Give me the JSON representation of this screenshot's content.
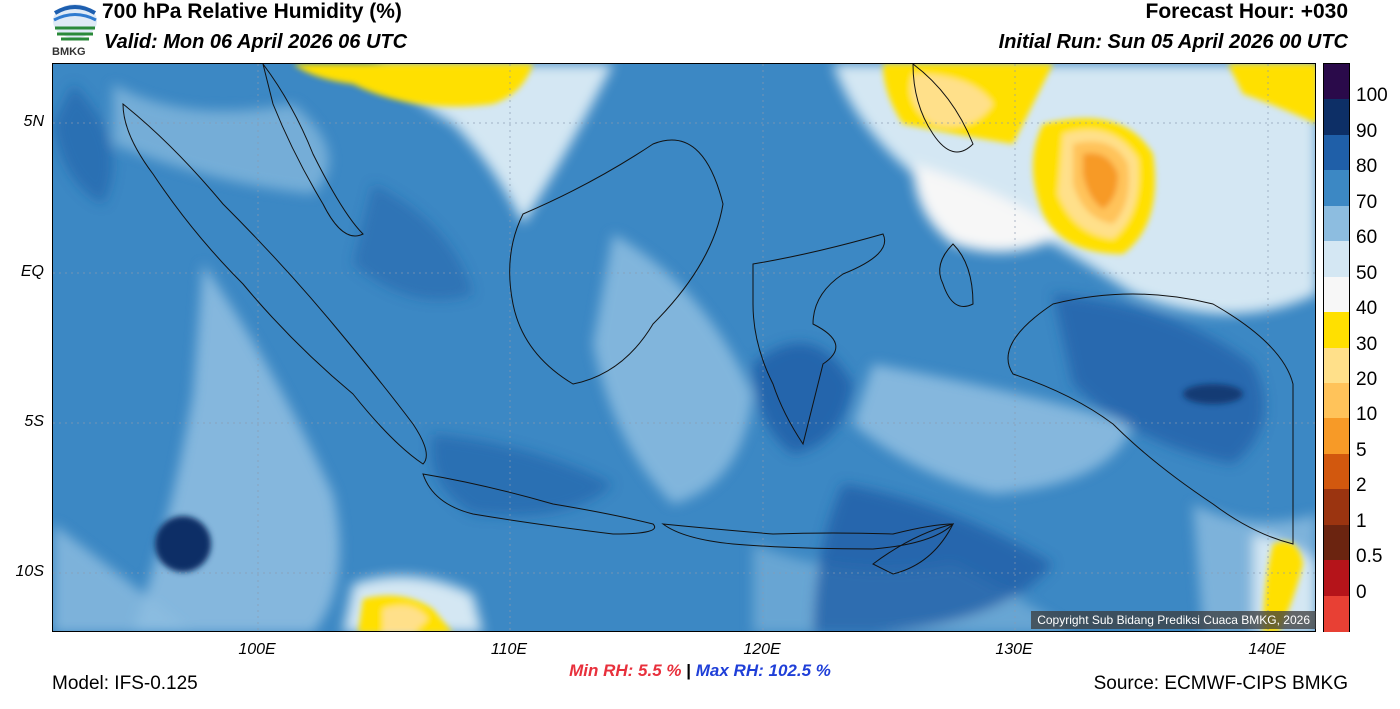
{
  "header": {
    "title": "700 hPa Relative Humidity (%)",
    "valid": "Valid: Mon 06 April 2026 06 UTC",
    "forecast_hour": "Forecast Hour: +030",
    "initial_run": "Initial Run: Sun 05 April 2026 00 UTC",
    "logo_text": "BMKG"
  },
  "axes": {
    "lat_labels": [
      "5N",
      "EQ",
      "5S",
      "10S"
    ],
    "lon_labels": [
      "100E",
      "110E",
      "120E",
      "130E",
      "140E"
    ]
  },
  "stats": {
    "min_label": "Min RH:",
    "min_value": "5.5 %",
    "separator": "|",
    "max_label": "Max RH: 102.5 %"
  },
  "footer": {
    "model": "Model: IFS-0.125",
    "source": "Source: ECMWF-CIPS BMKG",
    "copyright": "Copyright Sub Bidang Prediksi Cuaca BMKG, 2026"
  },
  "colorbar": {
    "labels": [
      "100",
      "90",
      "80",
      "70",
      "60",
      "50",
      "40",
      "30",
      "20",
      "10",
      "5",
      "2",
      "1",
      "0.5",
      "0"
    ],
    "colors": [
      "#2a0a4a",
      "#0d2f66",
      "#1f5fa8",
      "#3c88c4",
      "#8dbde0",
      "#d4e7f3",
      "#f7f7f7",
      "#ffe000",
      "#ffe08a",
      "#ffc35a",
      "#f79a27",
      "#d2580e",
      "#9b3410",
      "#6b2410",
      "#b5141a",
      "#e84034"
    ]
  }
}
